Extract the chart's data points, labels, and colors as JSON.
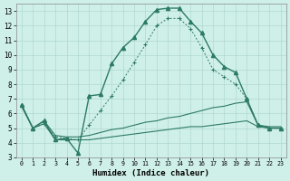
{
  "bg_color": "#cff0e8",
  "grid_color": "#b0d9ce",
  "line_color": "#2d7a65",
  "xlabel": "Humidex (Indice chaleur)",
  "xlim": [
    -0.5,
    23.5
  ],
  "ylim": [
    3,
    13.5
  ],
  "yticks": [
    3,
    4,
    5,
    6,
    7,
    8,
    9,
    10,
    11,
    12,
    13
  ],
  "xticks": [
    0,
    1,
    2,
    3,
    4,
    5,
    6,
    7,
    8,
    9,
    10,
    11,
    12,
    13,
    14,
    15,
    16,
    17,
    18,
    19,
    20,
    21,
    22,
    23
  ],
  "curve_main_x": [
    0,
    1,
    2,
    3,
    4,
    5,
    6,
    7,
    8,
    9,
    10,
    11,
    12,
    13,
    14,
    15,
    16,
    17,
    18,
    19,
    20,
    21,
    22,
    23
  ],
  "curve_main_y": [
    6.6,
    5.0,
    5.5,
    4.2,
    4.3,
    3.3,
    7.2,
    7.3,
    9.4,
    10.5,
    11.2,
    12.3,
    13.1,
    13.2,
    13.2,
    12.3,
    11.5,
    10.0,
    9.2,
    8.8,
    7.0,
    5.2,
    5.0,
    5.0
  ],
  "curve_dot_x": [
    0,
    1,
    2,
    3,
    4,
    5,
    6,
    7,
    8,
    9,
    10,
    11,
    12,
    13,
    14,
    15,
    16,
    17,
    18,
    19,
    20,
    21,
    22,
    23
  ],
  "curve_dot_y": [
    6.6,
    5.0,
    5.3,
    4.4,
    4.3,
    4.2,
    5.2,
    6.2,
    7.2,
    8.3,
    9.5,
    10.7,
    12.0,
    12.5,
    12.5,
    11.8,
    10.5,
    9.0,
    8.5,
    8.0,
    7.0,
    5.2,
    5.0,
    5.0
  ],
  "curve_flat1_x": [
    0,
    1,
    2,
    3,
    4,
    5,
    6,
    7,
    8,
    9,
    10,
    11,
    12,
    13,
    14,
    15,
    16,
    17,
    18,
    19,
    20,
    21,
    22,
    23
  ],
  "curve_flat1_y": [
    6.5,
    5.0,
    5.5,
    4.5,
    4.4,
    4.4,
    4.5,
    4.7,
    4.9,
    5.0,
    5.2,
    5.4,
    5.5,
    5.7,
    5.8,
    6.0,
    6.2,
    6.4,
    6.5,
    6.7,
    6.8,
    5.2,
    5.1,
    5.1
  ],
  "curve_flat2_x": [
    0,
    1,
    2,
    3,
    4,
    5,
    6,
    7,
    8,
    9,
    10,
    11,
    12,
    13,
    14,
    15,
    16,
    17,
    18,
    19,
    20,
    21,
    22,
    23
  ],
  "curve_flat2_y": [
    6.5,
    5.0,
    5.3,
    4.2,
    4.2,
    4.2,
    4.2,
    4.3,
    4.4,
    4.5,
    4.6,
    4.7,
    4.8,
    4.9,
    5.0,
    5.1,
    5.1,
    5.2,
    5.3,
    5.4,
    5.5,
    5.1,
    5.0,
    5.0
  ]
}
